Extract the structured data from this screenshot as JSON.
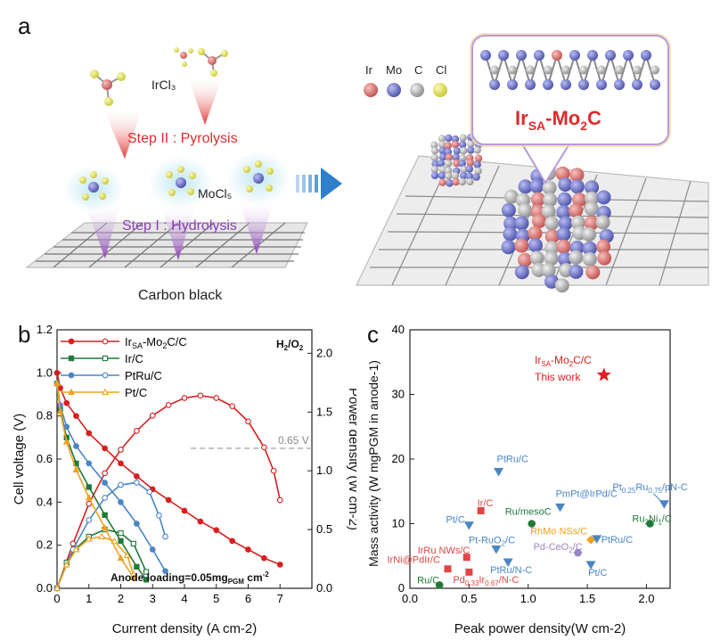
{
  "panel_a": {
    "label": "a",
    "irc_label": "IrCl₃",
    "moc_label": "MoCl₅",
    "step2": "Step II : Pyrolysis",
    "step1": "Step I : Hydrolysis",
    "support_label": "Carbon black",
    "legend_labels": [
      "Ir",
      "Mo",
      "C",
      "Cl"
    ],
    "legend_colors": [
      "#e07a78",
      "#7f86d8",
      "#a9a9a9",
      "#ecea5a"
    ],
    "product_prefix": "Ir",
    "product_sub": "SA",
    "product_suffix": "-Mo",
    "product_sub2": "2",
    "product_tail": "C",
    "accent_red": "#e02b2b",
    "accent_purple": "#8a3fb5",
    "arrow_blue": "#2f80c9"
  },
  "panel_b": {
    "label": "b",
    "condition": "H2/O2",
    "loading_text": "Anode loading=0.05mgPGM cm-2",
    "ref_voltage_label": "0.65 V",
    "colors": {
      "IrSA-Mo2C/C": "#d81f1f",
      "Ir/C": "#1f7a3a",
      "PtRu/C": "#4a86c5",
      "Pt/C": "#f0a21e"
    }
  },
  "panel_c": {
    "label": "c",
    "this_work_line1": "IrSA-Mo2C/C",
    "this_work_line2": "This work"
  },
  "chart_data": [
    {
      "type": "line",
      "xlabel": "Current density (A cm-2)",
      "ylabel": "Cell voltage (V)",
      "y2label": "Power density (W cm-2)",
      "xlim": [
        0,
        8
      ],
      "ylim": [
        0,
        1.2
      ],
      "y2lim": [
        0,
        2.2
      ],
      "xticks": [
        0,
        1,
        2,
        3,
        4,
        5,
        6,
        7
      ],
      "yticks": [
        0.0,
        0.2,
        0.4,
        0.6,
        0.8,
        1.0,
        1.2
      ],
      "y2ticks": [
        0.0,
        0.5,
        1.0,
        1.5,
        2.0
      ],
      "reference_line": 0.65,
      "legend": "top-left",
      "series": [
        {
          "name": "IrSA-Mo2C/C",
          "color": "#d81f1f",
          "voltage": {
            "x": [
              0,
              0.1,
              0.3,
              0.6,
              1,
              1.5,
              2,
              2.5,
              3,
              3.5,
              4,
              4.5,
              5,
              5.5,
              6,
              6.5,
              7
            ],
            "y": [
              1.0,
              0.93,
              0.86,
              0.8,
              0.72,
              0.65,
              0.58,
              0.52,
              0.46,
              0.41,
              0.36,
              0.31,
              0.27,
              0.22,
              0.18,
              0.14,
              0.11
            ]
          },
          "power": {
            "x": [
              0,
              0.5,
              1,
              1.5,
              2,
              2.5,
              3,
              3.5,
              4,
              4.5,
              5,
              5.5,
              6,
              6.5,
              6.8,
              7
            ],
            "y": [
              0,
              0.38,
              0.72,
              0.98,
              1.18,
              1.34,
              1.47,
              1.56,
              1.62,
              1.64,
              1.62,
              1.55,
              1.42,
              1.2,
              1.0,
              0.75
            ]
          }
        },
        {
          "name": "Ir/C",
          "color": "#1f7a3a",
          "voltage": {
            "x": [
              0,
              0.1,
              0.3,
              0.6,
              1,
              1.5,
              2,
              2.5,
              2.8
            ],
            "y": [
              0.95,
              0.83,
              0.7,
              0.58,
              0.47,
              0.34,
              0.22,
              0.1,
              0.04
            ]
          },
          "power": {
            "x": [
              0,
              0.3,
              0.6,
              1,
              1.5,
              2,
              2.4,
              2.8
            ],
            "y": [
              0,
              0.22,
              0.34,
              0.44,
              0.5,
              0.47,
              0.38,
              0.14
            ]
          }
        },
        {
          "name": "PtRu/C",
          "color": "#4a86c5",
          "voltage": {
            "x": [
              0,
              0.1,
              0.3,
              0.6,
              1,
              1.5,
              2,
              2.5,
              3,
              3.4
            ],
            "y": [
              0.95,
              0.85,
              0.75,
              0.66,
              0.58,
              0.49,
              0.4,
              0.3,
              0.18,
              0.08
            ]
          },
          "power": {
            "x": [
              0,
              0.5,
              1,
              1.5,
              2,
              2.5,
              2.9,
              3.2,
              3.4
            ],
            "y": [
              0,
              0.33,
              0.58,
              0.77,
              0.88,
              0.9,
              0.82,
              0.62,
              0.44
            ]
          }
        },
        {
          "name": "Pt/C",
          "color": "#f0a21e",
          "voltage": {
            "x": [
              0,
              0.1,
              0.3,
              0.6,
              1,
              1.5,
              2,
              2.4
            ],
            "y": [
              0.95,
              0.82,
              0.68,
              0.55,
              0.42,
              0.28,
              0.14,
              0.05
            ]
          },
          "power": {
            "x": [
              0,
              0.3,
              0.6,
              1,
              1.4,
              1.8,
              2.2,
              2.4
            ],
            "y": [
              0,
              0.2,
              0.33,
              0.42,
              0.44,
              0.4,
              0.28,
              0.12
            ]
          }
        }
      ]
    },
    {
      "type": "scatter",
      "xlabel": "Peak power density(W cm-2)",
      "ylabel": "Mass activity (W mgPGM in anode-1)",
      "xlim": [
        0.0,
        2.2
      ],
      "ylim": [
        0,
        40
      ],
      "xticks": [
        0.0,
        0.5,
        1.0,
        1.5,
        2.0
      ],
      "yticks": [
        0,
        10,
        20,
        30,
        40
      ],
      "points": [
        {
          "label": "IrSA-Mo2C/C",
          "x": 1.64,
          "y": 33,
          "marker": "star",
          "color": "#e02020"
        },
        {
          "label": "PtRu/C",
          "x": 0.75,
          "y": 18,
          "marker": "tri-down",
          "color": "#4a86c5"
        },
        {
          "label": "Pt0.25Ru0.75/pN-C",
          "x": 2.15,
          "y": 13,
          "marker": "tri-down",
          "color": "#4a86c5"
        },
        {
          "label": "PmPt@IrPd/C",
          "x": 1.27,
          "y": 12.5,
          "marker": "tri-down",
          "color": "#4a86c5"
        },
        {
          "label": "Ir/C",
          "x": 0.6,
          "y": 12,
          "marker": "square",
          "color": "#e04545"
        },
        {
          "label": "Ru/mesoC",
          "x": 1.03,
          "y": 10,
          "marker": "circle",
          "color": "#1f7a3a"
        },
        {
          "label": "Ru3Ni1/C",
          "x": 2.03,
          "y": 10,
          "marker": "circle",
          "color": "#1f7a3a"
        },
        {
          "label": "Pt/C",
          "x": 0.5,
          "y": 9.7,
          "marker": "tri-down",
          "color": "#4a86c5"
        },
        {
          "label": "RhMo NSs/C",
          "x": 1.53,
          "y": 7.5,
          "marker": "diamond",
          "color": "#f0a21e"
        },
        {
          "label": "PtRu/C",
          "x": 1.58,
          "y": 7.6,
          "marker": "tri-down",
          "color": "#4a86c5"
        },
        {
          "label": "Pt-RuO2/C",
          "x": 0.73,
          "y": 6.0,
          "marker": "tri-down",
          "color": "#4a86c5"
        },
        {
          "label": "Pd-CeO2/C",
          "x": 1.42,
          "y": 5.5,
          "marker": "hexagon",
          "color": "#9a86c8"
        },
        {
          "label": "IrRu NWs/C",
          "x": 0.48,
          "y": 4.8,
          "marker": "square",
          "color": "#e04545"
        },
        {
          "label": "PtRu/N-C",
          "x": 0.83,
          "y": 4.0,
          "marker": "tri-down",
          "color": "#4a86c5"
        },
        {
          "label": "Pt/C",
          "x": 1.53,
          "y": 3.6,
          "marker": "tri-down",
          "color": "#4a86c5"
        },
        {
          "label": "IrNi@PdIr/C",
          "x": 0.32,
          "y": 3.0,
          "marker": "square",
          "color": "#e04545"
        },
        {
          "label": "Pd0.33Ir0.67/N-C",
          "x": 0.5,
          "y": 2.5,
          "marker": "square",
          "color": "#e04545"
        },
        {
          "label": "Ru/C",
          "x": 0.25,
          "y": 0.5,
          "marker": "circle",
          "color": "#1f7a3a"
        }
      ]
    }
  ]
}
